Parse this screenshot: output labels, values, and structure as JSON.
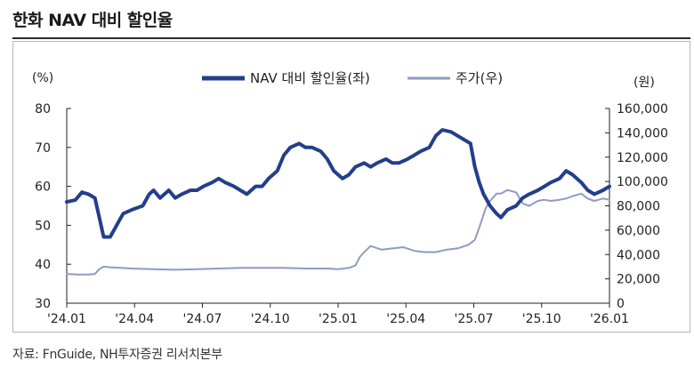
{
  "title": "한화 NAV 대비 할인율",
  "source": "자료: FnGuide, NH투자증권 리서치본부",
  "colors": {
    "nav": "#233f8a",
    "price": "#8f9bc4",
    "axis": "#222222"
  },
  "chart_data": {
    "type": "line",
    "left_unit": "(%)",
    "right_unit": "(원)",
    "legend_position": "top",
    "grid": false,
    "x_ticks": [
      "'24.01",
      "'24.04",
      "'24.07",
      "'24.10",
      "'25.01",
      "'25.04",
      "'25.07",
      "'25.10",
      "'26.01"
    ],
    "x_range": [
      0,
      25
    ],
    "y_left": {
      "range": [
        30,
        80
      ],
      "ticks": [
        "80",
        "70",
        "60",
        "50",
        "40",
        "30"
      ]
    },
    "y_right": {
      "range": [
        0,
        160000
      ],
      "ticks": [
        "160,000",
        "140,000",
        "120,000",
        "100,000",
        "80,000",
        "60,000",
        "40,000",
        "20,000",
        "0"
      ]
    },
    "series": [
      {
        "name": "NAV 대비 할인율(좌)",
        "axis": "left",
        "points": [
          [
            0.0,
            56
          ],
          [
            0.4,
            56.5
          ],
          [
            0.7,
            58.5
          ],
          [
            1.0,
            58
          ],
          [
            1.3,
            57
          ],
          [
            1.5,
            52
          ],
          [
            1.7,
            47
          ],
          [
            2.0,
            47
          ],
          [
            2.3,
            50
          ],
          [
            2.6,
            53
          ],
          [
            3.0,
            54
          ],
          [
            3.5,
            55
          ],
          [
            3.8,
            58
          ],
          [
            4.0,
            59
          ],
          [
            4.3,
            57
          ],
          [
            4.7,
            59
          ],
          [
            5.0,
            57
          ],
          [
            5.3,
            58
          ],
          [
            5.7,
            59
          ],
          [
            6.0,
            59
          ],
          [
            6.3,
            60
          ],
          [
            6.7,
            61
          ],
          [
            7.0,
            62
          ],
          [
            7.3,
            61
          ],
          [
            7.7,
            60
          ],
          [
            8.0,
            59
          ],
          [
            8.3,
            58
          ],
          [
            8.7,
            60
          ],
          [
            9.0,
            60
          ],
          [
            9.3,
            62
          ],
          [
            9.7,
            64
          ],
          [
            10.0,
            68
          ],
          [
            10.3,
            70
          ],
          [
            10.7,
            71
          ],
          [
            11.0,
            70
          ],
          [
            11.3,
            70
          ],
          [
            11.7,
            69
          ],
          [
            12.0,
            67
          ],
          [
            12.3,
            64
          ],
          [
            12.7,
            62
          ],
          [
            13.0,
            63
          ],
          [
            13.3,
            65
          ],
          [
            13.7,
            66
          ],
          [
            14.0,
            65
          ],
          [
            14.3,
            66
          ],
          [
            14.7,
            67
          ],
          [
            15.0,
            66
          ],
          [
            15.3,
            66
          ],
          [
            15.7,
            67
          ],
          [
            16.0,
            68
          ],
          [
            16.3,
            69
          ],
          [
            16.7,
            70
          ],
          [
            17.0,
            73
          ],
          [
            17.3,
            74.5
          ],
          [
            17.7,
            74
          ],
          [
            18.0,
            73
          ],
          [
            18.3,
            72
          ],
          [
            18.6,
            71
          ],
          [
            18.8,
            65
          ],
          [
            19.0,
            61
          ],
          [
            19.2,
            58
          ],
          [
            19.5,
            55
          ],
          [
            19.8,
            53
          ],
          [
            20.0,
            52
          ],
          [
            20.3,
            54
          ],
          [
            20.7,
            55
          ],
          [
            21.0,
            57
          ],
          [
            21.3,
            58
          ],
          [
            21.7,
            59
          ],
          [
            22.0,
            60
          ],
          [
            22.3,
            61
          ],
          [
            22.7,
            62
          ],
          [
            23.0,
            64
          ],
          [
            23.3,
            63
          ],
          [
            23.7,
            61
          ],
          [
            24.0,
            59
          ],
          [
            24.3,
            58
          ],
          [
            24.7,
            59
          ],
          [
            25.0,
            60
          ]
        ]
      },
      {
        "name": "주가(우)",
        "axis": "right",
        "points": [
          [
            0.0,
            24000
          ],
          [
            0.5,
            23500
          ],
          [
            1.0,
            23500
          ],
          [
            1.3,
            24000
          ],
          [
            1.5,
            28000
          ],
          [
            1.7,
            30000
          ],
          [
            2.0,
            29500
          ],
          [
            3.0,
            28500
          ],
          [
            4.0,
            28000
          ],
          [
            5.0,
            27500
          ],
          [
            6.0,
            28000
          ],
          [
            7.0,
            28500
          ],
          [
            8.0,
            29000
          ],
          [
            9.0,
            29000
          ],
          [
            10.0,
            29000
          ],
          [
            11.0,
            28500
          ],
          [
            12.0,
            28500
          ],
          [
            12.5,
            28000
          ],
          [
            13.0,
            29000
          ],
          [
            13.3,
            31000
          ],
          [
            13.5,
            38000
          ],
          [
            13.7,
            42000
          ],
          [
            14.0,
            47000
          ],
          [
            14.5,
            44000
          ],
          [
            15.0,
            45000
          ],
          [
            15.5,
            46000
          ],
          [
            16.0,
            43000
          ],
          [
            16.5,
            42000
          ],
          [
            17.0,
            42000
          ],
          [
            17.5,
            44000
          ],
          [
            18.0,
            45000
          ],
          [
            18.5,
            48000
          ],
          [
            18.8,
            52000
          ],
          [
            19.0,
            62000
          ],
          [
            19.3,
            78000
          ],
          [
            19.5,
            84000
          ],
          [
            19.8,
            90000
          ],
          [
            20.0,
            90000
          ],
          [
            20.3,
            93000
          ],
          [
            20.7,
            91000
          ],
          [
            21.0,
            82000
          ],
          [
            21.3,
            80000
          ],
          [
            21.7,
            84000
          ],
          [
            22.0,
            85000
          ],
          [
            22.3,
            84000
          ],
          [
            22.7,
            85000
          ],
          [
            23.0,
            86000
          ],
          [
            23.3,
            88000
          ],
          [
            23.7,
            90000
          ],
          [
            24.0,
            86000
          ],
          [
            24.3,
            84000
          ],
          [
            24.7,
            86000
          ],
          [
            25.0,
            85000
          ]
        ]
      }
    ]
  }
}
